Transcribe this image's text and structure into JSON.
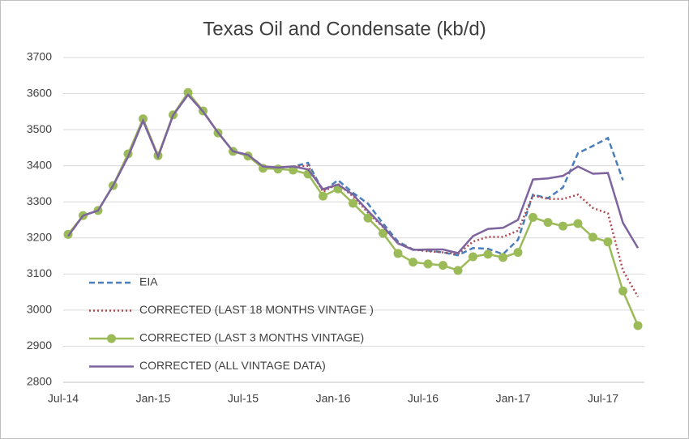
{
  "chart_data": {
    "type": "line",
    "title": "Texas Oil and Condensate (kb/d)",
    "categories": [
      "Jul-14",
      null,
      null,
      null,
      null,
      null,
      "Jan-15",
      null,
      null,
      null,
      null,
      null,
      "Jul-15",
      null,
      null,
      null,
      null,
      null,
      "Jan-16",
      null,
      null,
      null,
      null,
      null,
      "Jul-16",
      null,
      null,
      null,
      null,
      null,
      "Jan-17",
      null,
      null,
      null,
      null,
      null,
      "Jul-17",
      null,
      null
    ],
    "ylim": [
      2800,
      3700
    ],
    "yticks": [
      2800,
      2900,
      3000,
      3100,
      3200,
      3300,
      3400,
      3500,
      3600,
      3700
    ],
    "grid": true,
    "legend": "lower left",
    "series": [
      {
        "name": "EIA",
        "color": "#4a7ebb",
        "style": "dashed",
        "values": [
          3205,
          3262,
          3276,
          3345,
          3425,
          3525,
          3425,
          3540,
          3597,
          3550,
          3492,
          3440,
          3430,
          3398,
          3395,
          3398,
          3408,
          3330,
          3360,
          3325,
          3295,
          3240,
          3190,
          3168,
          3165,
          3160,
          3152,
          3172,
          3170,
          3155,
          3195,
          3320,
          3310,
          3340,
          3435,
          3455,
          3477,
          3360,
          null
        ]
      },
      {
        "name": "CORRECTED (LAST 18 MONTHS VINTAGE )",
        "color": "#b04a50",
        "style": "dotted",
        "values": [
          3205,
          3262,
          3276,
          3345,
          3425,
          3525,
          3425,
          3540,
          3597,
          3550,
          3492,
          3440,
          3430,
          3398,
          3395,
          3398,
          3400,
          3328,
          3350,
          3315,
          3270,
          3230,
          3185,
          3168,
          3163,
          3160,
          3155,
          3190,
          3203,
          3203,
          3220,
          3318,
          3308,
          3308,
          3320,
          3283,
          3268,
          3110,
          3037
        ]
      },
      {
        "name": "CORRECTED (LAST 3 MONTHS VINTAGE)",
        "color": "#9bbb59",
        "style": "marker",
        "values": [
          3210,
          3262,
          3276,
          3345,
          3433,
          3530,
          3428,
          3541,
          3603,
          3552,
          3491,
          3440,
          3427,
          3393,
          3391,
          3388,
          3377,
          3316,
          3336,
          3296,
          3255,
          3213,
          3157,
          3133,
          3128,
          3124,
          3110,
          3148,
          3155,
          3146,
          3160,
          3257,
          3243,
          3233,
          3240,
          3202,
          3189,
          3053,
          2957
        ]
      },
      {
        "name": "CORRECTED (ALL VINTAGE DATA)",
        "color": "#7e649e",
        "style": "solid",
        "values": [
          3205,
          3262,
          3276,
          3345,
          3425,
          3525,
          3425,
          3540,
          3597,
          3550,
          3492,
          3440,
          3430,
          3398,
          3395,
          3398,
          3390,
          3335,
          3348,
          3320,
          3275,
          3232,
          3185,
          3167,
          3168,
          3168,
          3158,
          3205,
          3225,
          3228,
          3250,
          3362,
          3365,
          3372,
          3398,
          3378,
          3380,
          3242,
          3172
        ]
      }
    ]
  }
}
